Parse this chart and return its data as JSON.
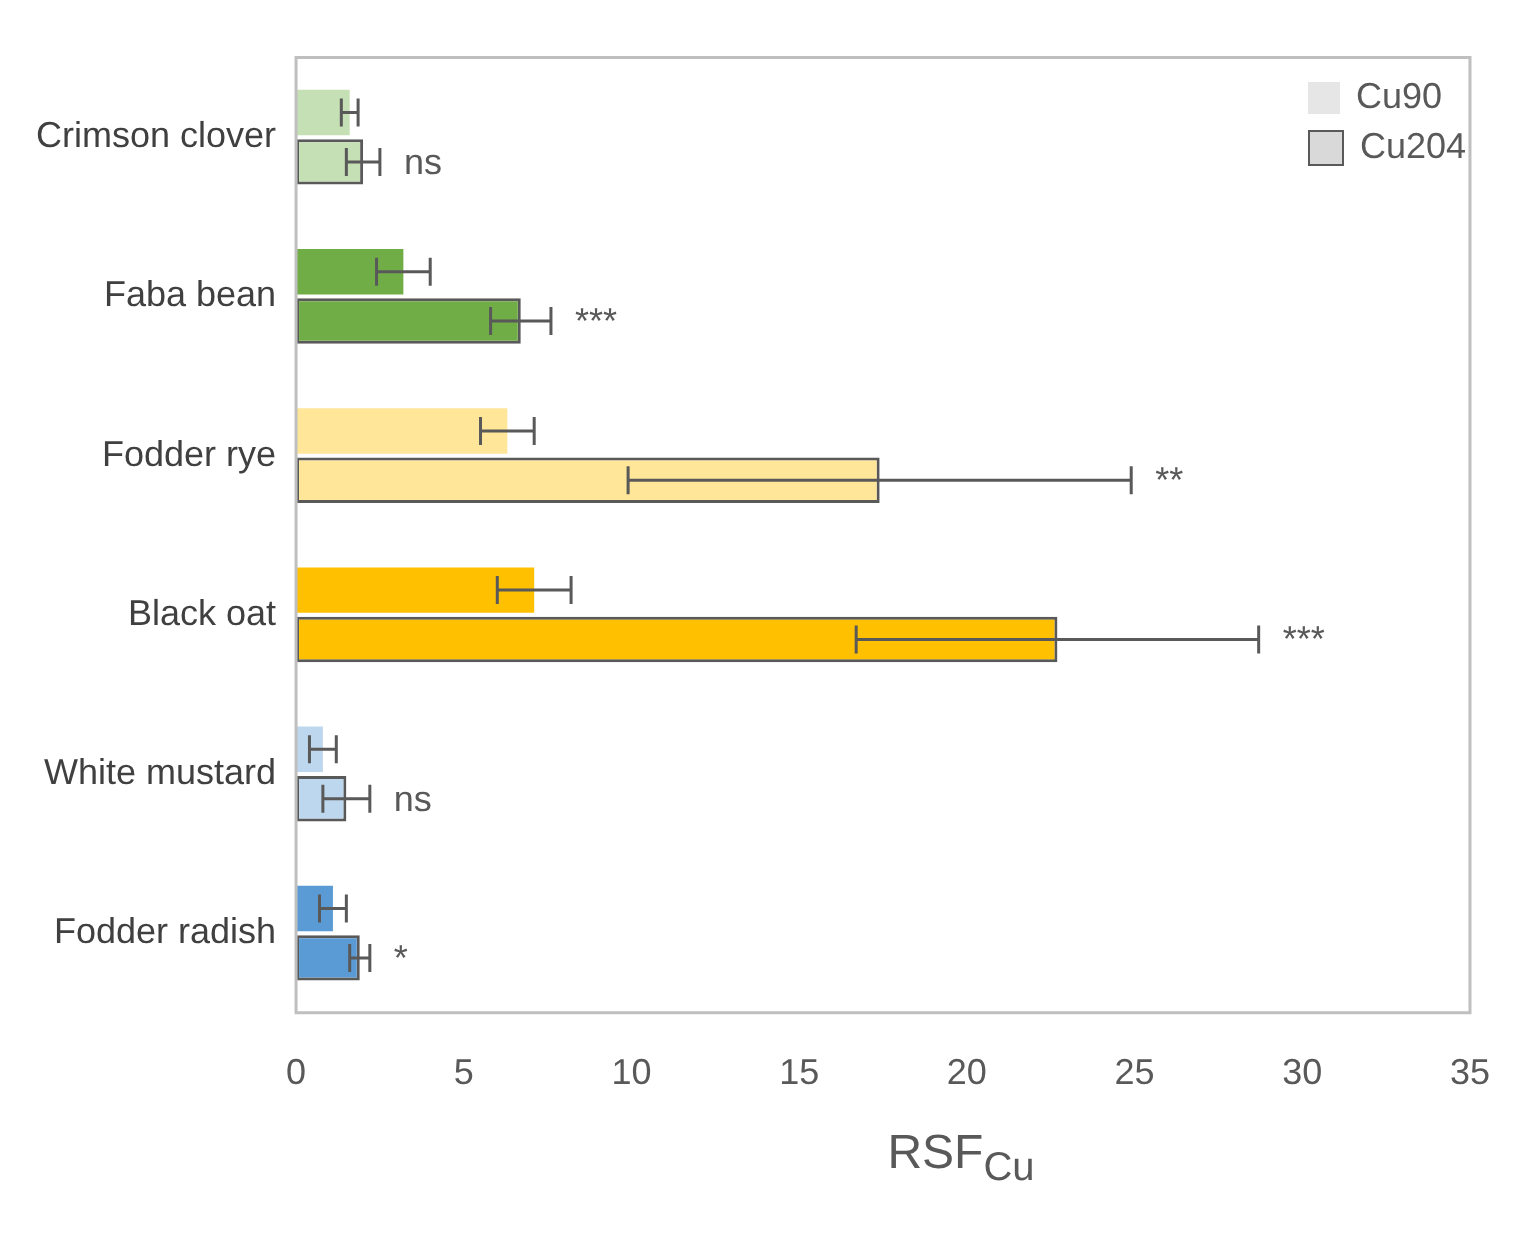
{
  "chart_data": {
    "type": "bar",
    "orientation": "horizontal",
    "xlabel": "RSF$_{Cu}$",
    "categories": [
      "Crimson clover",
      "Faba bean",
      "Fodder rye",
      "Black oat",
      "White mustard",
      "Fodder radish"
    ],
    "series": [
      {
        "name": "Cu90",
        "color": "#e7e6e6",
        "colors": [
          "#c5e0b4",
          "#70ad47",
          "#ffe699",
          "#ffc000",
          "#bdd7ee",
          "#5b9bd5"
        ],
        "values": [
          1.6,
          3.2,
          6.3,
          7.1,
          0.8,
          1.1
        ],
        "errors": [
          0.25,
          0.8,
          0.8,
          1.1,
          0.4,
          0.4
        ]
      },
      {
        "name": "Cu204",
        "color": "#d9d9d9",
        "colors": [
          "#c5e0b4",
          "#70ad47",
          "#ffe699",
          "#ffc000",
          "#bdd7ee",
          "#5b9bd5"
        ],
        "values": [
          2.0,
          6.7,
          17.4,
          22.7,
          1.5,
          1.9
        ],
        "errors": [
          0.5,
          0.9,
          7.5,
          6.0,
          0.7,
          0.3
        ]
      }
    ],
    "xlim": [
      0,
      35
    ],
    "xticks": [
      0,
      5,
      10,
      15,
      20,
      25,
      30,
      35
    ],
    "grid": false,
    "legend": "top right",
    "annotations": [
      "ns",
      "***",
      "**",
      "***",
      "ns",
      "*"
    ]
  }
}
